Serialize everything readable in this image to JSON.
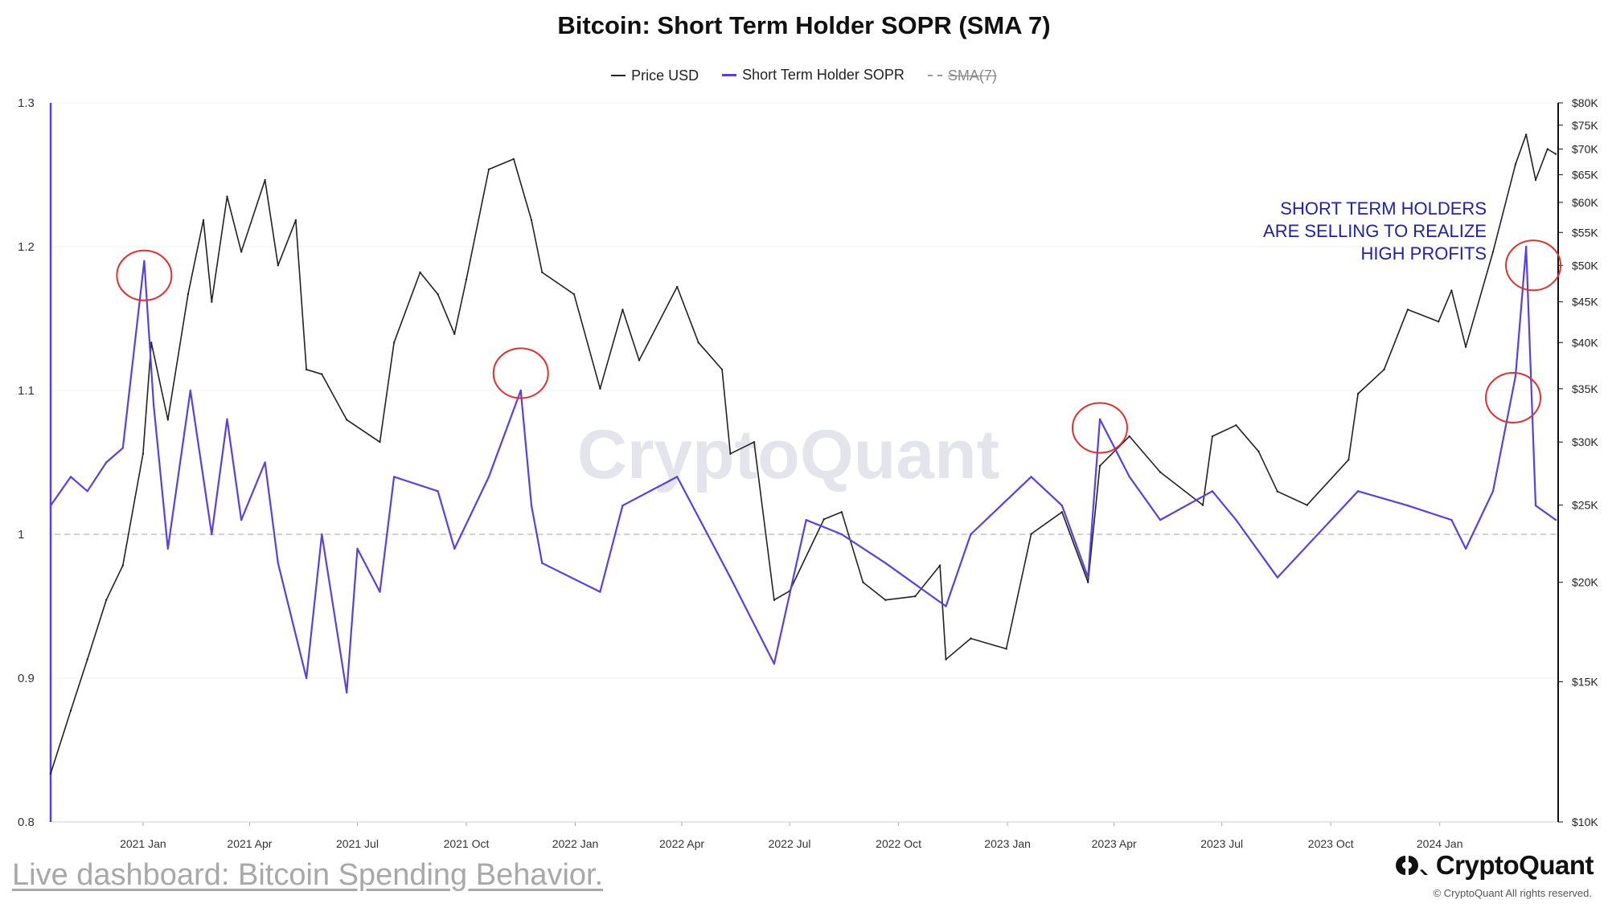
{
  "chart_data": {
    "type": "line",
    "title": "Bitcoin: Short Term Holder SOPR (SMA 7)",
    "legend": [
      {
        "label": "Price USD",
        "color": "#222222",
        "style": "solid"
      },
      {
        "label": "Short Term Holder SOPR",
        "color": "#5b3fe0",
        "style": "solid"
      },
      {
        "label": "SMA(7)",
        "color": "#999999",
        "style": "dashed",
        "disabled": true
      }
    ],
    "legend_position": "top-center",
    "x_ticks": [
      "2021 Jan",
      "2021 Apr",
      "2021 Jul",
      "2021 Oct",
      "2022 Jan",
      "2022 Apr",
      "2022 Jul",
      "2022 Oct",
      "2023 Jan",
      "2023 Apr",
      "2023 Jul",
      "2023 Oct",
      "2024 Jan"
    ],
    "x_range": [
      "2020-10-15",
      "2024-04-10"
    ],
    "y_left": {
      "label": "",
      "ticks": [
        "1.3",
        "1.2",
        "1.1",
        "1",
        "0.9",
        "0.8"
      ],
      "range": [
        0.8,
        1.3
      ]
    },
    "y_right": {
      "label": "",
      "scale": "log",
      "ticks": [
        "$80K",
        "$75K",
        "$70K",
        "$65K",
        "$60K",
        "$55K",
        "$50K",
        "$45K",
        "$40K",
        "$35K",
        "$30K",
        "$25K",
        "$20K",
        "$15K",
        "$10K"
      ],
      "range": [
        10000,
        80000
      ]
    },
    "reference_line": {
      "axis": "left",
      "value": 1.0,
      "style": "dashed"
    },
    "series": [
      {
        "name": "Price USD",
        "axis": "right",
        "points": [
          [
            "2020-10-15",
            11500
          ],
          [
            "2020-11-01",
            13800
          ],
          [
            "2020-11-15",
            16000
          ],
          [
            "2020-12-01",
            19000
          ],
          [
            "2020-12-15",
            21000
          ],
          [
            "2021-01-01",
            29000
          ],
          [
            "2021-01-08",
            40000
          ],
          [
            "2021-01-22",
            32000
          ],
          [
            "2021-02-08",
            46000
          ],
          [
            "2021-02-21",
            57000
          ],
          [
            "2021-02-28",
            45000
          ],
          [
            "2021-03-13",
            61000
          ],
          [
            "2021-03-25",
            52000
          ],
          [
            "2021-04-14",
            64000
          ],
          [
            "2021-04-25",
            50000
          ],
          [
            "2021-05-10",
            57000
          ],
          [
            "2021-05-19",
            37000
          ],
          [
            "2021-06-01",
            36500
          ],
          [
            "2021-06-22",
            32000
          ],
          [
            "2021-07-20",
            30000
          ],
          [
            "2021-08-01",
            40000
          ],
          [
            "2021-08-23",
            49000
          ],
          [
            "2021-09-07",
            46000
          ],
          [
            "2021-09-21",
            41000
          ],
          [
            "2021-10-01",
            48000
          ],
          [
            "2021-10-20",
            66000
          ],
          [
            "2021-11-10",
            68000
          ],
          [
            "2021-11-25",
            57000
          ],
          [
            "2021-12-04",
            49000
          ],
          [
            "2021-12-31",
            46000
          ],
          [
            "2022-01-22",
            35000
          ],
          [
            "2022-02-10",
            44000
          ],
          [
            "2022-02-24",
            38000
          ],
          [
            "2022-03-28",
            47000
          ],
          [
            "2022-04-15",
            40000
          ],
          [
            "2022-05-05",
            37000
          ],
          [
            "2022-05-12",
            29000
          ],
          [
            "2022-06-01",
            30000
          ],
          [
            "2022-06-18",
            19000
          ],
          [
            "2022-07-01",
            19500
          ],
          [
            "2022-07-30",
            24000
          ],
          [
            "2022-08-14",
            24500
          ],
          [
            "2022-09-01",
            20000
          ],
          [
            "2022-09-20",
            19000
          ],
          [
            "2022-10-15",
            19200
          ],
          [
            "2022-11-05",
            21000
          ],
          [
            "2022-11-10",
            16000
          ],
          [
            "2022-12-01",
            17000
          ],
          [
            "2022-12-31",
            16500
          ],
          [
            "2023-01-21",
            23000
          ],
          [
            "2023-02-16",
            24500
          ],
          [
            "2023-03-10",
            20000
          ],
          [
            "2023-03-20",
            28000
          ],
          [
            "2023-04-14",
            30500
          ],
          [
            "2023-05-10",
            27500
          ],
          [
            "2023-06-15",
            25000
          ],
          [
            "2023-06-23",
            30500
          ],
          [
            "2023-07-13",
            31500
          ],
          [
            "2023-08-01",
            29200
          ],
          [
            "2023-08-17",
            26000
          ],
          [
            "2023-09-11",
            25000
          ],
          [
            "2023-10-16",
            28500
          ],
          [
            "2023-10-24",
            34500
          ],
          [
            "2023-11-15",
            37000
          ],
          [
            "2023-12-05",
            44000
          ],
          [
            "2023-12-31",
            42500
          ],
          [
            "2024-01-11",
            46500
          ],
          [
            "2024-01-23",
            39500
          ],
          [
            "2024-02-15",
            52000
          ],
          [
            "2024-03-05",
            67000
          ],
          [
            "2024-03-14",
            73000
          ],
          [
            "2024-03-22",
            64000
          ],
          [
            "2024-04-01",
            70000
          ],
          [
            "2024-04-08",
            69000
          ]
        ]
      },
      {
        "name": "Short Term Holder SOPR",
        "axis": "left",
        "points": [
          [
            "2020-10-15",
            1.02
          ],
          [
            "2020-11-01",
            1.04
          ],
          [
            "2020-11-15",
            1.03
          ],
          [
            "2020-12-01",
            1.05
          ],
          [
            "2020-12-15",
            1.06
          ],
          [
            "2021-01-02",
            1.19
          ],
          [
            "2021-01-10",
            1.09
          ],
          [
            "2021-01-22",
            0.99
          ],
          [
            "2021-02-10",
            1.1
          ],
          [
            "2021-02-28",
            1.0
          ],
          [
            "2021-03-13",
            1.08
          ],
          [
            "2021-03-25",
            1.01
          ],
          [
            "2021-04-14",
            1.05
          ],
          [
            "2021-04-25",
            0.98
          ],
          [
            "2021-05-19",
            0.9
          ],
          [
            "2021-06-01",
            1.0
          ],
          [
            "2021-06-22",
            0.89
          ],
          [
            "2021-07-01",
            0.99
          ],
          [
            "2021-07-20",
            0.96
          ],
          [
            "2021-08-01",
            1.04
          ],
          [
            "2021-09-07",
            1.03
          ],
          [
            "2021-09-21",
            0.99
          ],
          [
            "2021-10-20",
            1.04
          ],
          [
            "2021-11-16",
            1.1
          ],
          [
            "2021-11-25",
            1.02
          ],
          [
            "2021-12-04",
            0.98
          ],
          [
            "2022-01-22",
            0.96
          ],
          [
            "2022-02-10",
            1.02
          ],
          [
            "2022-03-28",
            1.04
          ],
          [
            "2022-05-12",
            0.97
          ],
          [
            "2022-06-18",
            0.91
          ],
          [
            "2022-07-15",
            1.01
          ],
          [
            "2022-08-14",
            1.0
          ],
          [
            "2022-09-20",
            0.98
          ],
          [
            "2022-11-10",
            0.95
          ],
          [
            "2022-12-01",
            1.0
          ],
          [
            "2023-01-21",
            1.04
          ],
          [
            "2023-02-16",
            1.02
          ],
          [
            "2023-03-10",
            0.97
          ],
          [
            "2023-03-20",
            1.08
          ],
          [
            "2023-04-14",
            1.04
          ],
          [
            "2023-05-10",
            1.01
          ],
          [
            "2023-06-23",
            1.03
          ],
          [
            "2023-07-13",
            1.01
          ],
          [
            "2023-08-17",
            0.97
          ],
          [
            "2023-10-24",
            1.03
          ],
          [
            "2023-12-05",
            1.02
          ],
          [
            "2024-01-11",
            1.01
          ],
          [
            "2024-01-23",
            0.99
          ],
          [
            "2024-02-15",
            1.03
          ],
          [
            "2024-03-05",
            1.11
          ],
          [
            "2024-03-14",
            1.2
          ],
          [
            "2024-03-22",
            1.02
          ],
          [
            "2024-04-08",
            1.01
          ]
        ]
      }
    ],
    "annotations": [
      {
        "type": "text",
        "lines": [
          "SHORT TERM HOLDERS",
          "ARE SELLING TO REALIZE",
          "HIGH PROFITS"
        ],
        "color": "#1f22a8"
      },
      {
        "type": "circle",
        "date": "2021-01-02",
        "value": 1.18,
        "color": "#e03030"
      },
      {
        "type": "circle",
        "date": "2021-11-16",
        "value": 1.112,
        "color": "#e03030"
      },
      {
        "type": "circle",
        "date": "2023-03-20",
        "value": 1.074,
        "color": "#e03030"
      },
      {
        "type": "circle",
        "date": "2024-03-03",
        "value": 1.095,
        "color": "#e03030"
      },
      {
        "type": "circle",
        "date": "2024-03-20",
        "value": 1.187,
        "color": "#e03030"
      }
    ]
  },
  "watermark": "CryptoQuant",
  "footer": {
    "link_text": "Live dashboard: Bitcoin Spending Behavior.",
    "logo_text": "CryptoQuant",
    "copyright": "© CryptoQuant All rights reserved."
  },
  "colors": {
    "sopr": "#5b3fe0",
    "price": "#222222",
    "annotation_text": "#1f22a8",
    "circle": "#e03030"
  }
}
